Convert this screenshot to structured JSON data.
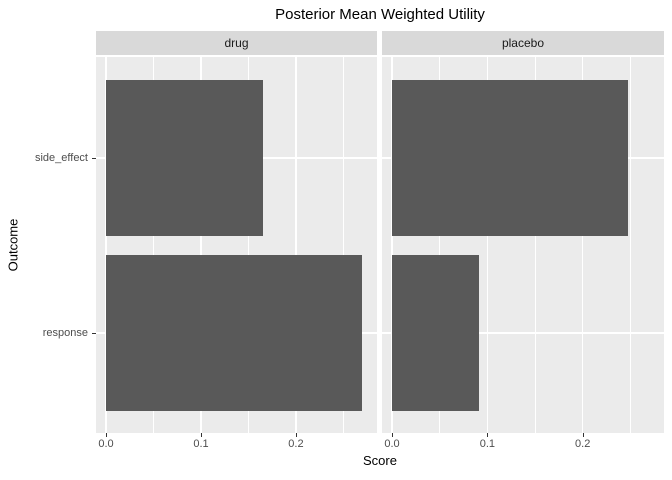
{
  "chart_data": {
    "type": "bar",
    "orientation": "horizontal",
    "title": "Posterior Mean Weighted Utility",
    "xlabel": "Score",
    "ylabel": "Outcome",
    "facets": [
      "drug",
      "placebo"
    ],
    "categories": [
      "side_effect",
      "response"
    ],
    "series": [
      {
        "name": "drug",
        "values": [
          0.165,
          0.269
        ]
      },
      {
        "name": "placebo",
        "values": [
          0.248,
          0.091
        ]
      }
    ],
    "x_ticks": [
      "0.0",
      "0.1",
      "0.2"
    ],
    "x_tick_values": [
      0.0,
      0.1,
      0.2
    ],
    "x_minor_values": [
      0.05,
      0.15,
      0.25
    ],
    "xlim": [
      -0.0105,
      0.2853
    ],
    "grid": "major-and-minor-white",
    "legend": "none",
    "colors": {
      "bar": "#595959",
      "panel_bg": "#EBEBEB",
      "strip_bg": "#D9D9D9",
      "grid": "#FFFFFF",
      "axis_text": "#4D4D4D",
      "strip_text": "#1A1A1A",
      "title_text": "#000000",
      "tick_mark": "#333333",
      "background": "#FFFFFF"
    }
  }
}
